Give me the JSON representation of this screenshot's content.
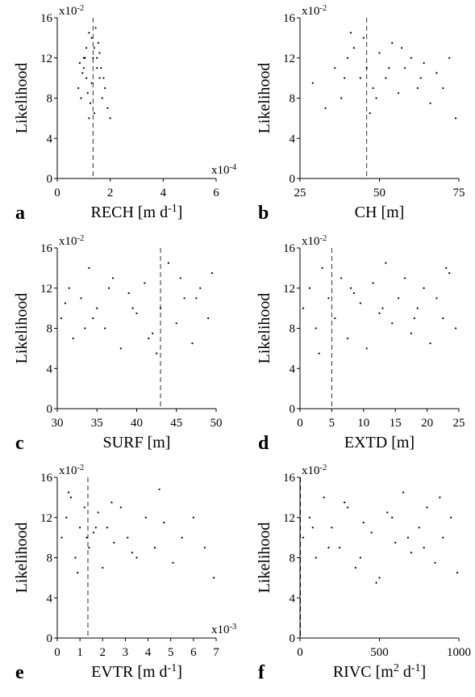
{
  "chart_data": [
    {
      "type": "scatter",
      "panel": "a",
      "ylabel": "Likelihood",
      "xlabel": [
        "RECH [m d",
        "-1",
        "]"
      ],
      "ymultiplier": [
        "x10",
        "-2"
      ],
      "xmultiplier": [
        "x10",
        "-4"
      ],
      "xlim": [
        0,
        6
      ],
      "xticks": [
        0,
        2,
        4,
        6
      ],
      "ylim": [
        0,
        16
      ],
      "yticks": [
        0,
        4,
        8,
        12,
        16
      ],
      "vline": 1.35,
      "color": "#000000",
      "x": [
        0.8,
        1.0,
        1.1,
        1.2,
        1.3,
        1.4,
        1.5,
        1.6,
        1.7,
        1.9,
        0.9,
        1.2,
        1.35,
        1.5,
        1.8,
        1.1,
        1.3,
        1.6,
        2.0,
        0.95,
        1.25,
        1.45,
        1.65,
        1.05,
        1.75,
        0.85,
        1.15,
        1.55,
        1.4,
        1.0
      ],
      "y": [
        9,
        11,
        13,
        14.5,
        14,
        13,
        12,
        10,
        8,
        7,
        8,
        6,
        12,
        11,
        9,
        10,
        9.5,
        12.5,
        6,
        10.5,
        7.5,
        15,
        11,
        12,
        10,
        11.5,
        8.5,
        13.5,
        6.5,
        12
      ]
    },
    {
      "type": "scatter",
      "panel": "b",
      "ylabel": "Likelihood",
      "xlabel": [
        "CH [m]"
      ],
      "ymultiplier": [
        "x10",
        "-2"
      ],
      "xlim": [
        25,
        75
      ],
      "xticks": [
        25,
        50,
        75
      ],
      "ylim": [
        0,
        16
      ],
      "yticks": [
        0,
        4,
        8,
        12,
        16
      ],
      "vline": 46,
      "color": "#000000",
      "x": [
        29,
        33,
        36,
        38,
        40,
        42,
        44,
        45,
        46,
        48,
        50,
        52,
        54,
        56,
        58,
        60,
        62,
        64,
        66,
        68,
        70,
        72,
        74,
        41,
        47,
        53,
        57,
        63,
        39,
        49
      ],
      "y": [
        9.5,
        7,
        11,
        8,
        12,
        13,
        10,
        14,
        11,
        9,
        12.5,
        10,
        13.5,
        8.5,
        11,
        12,
        9,
        11.5,
        7.5,
        10.5,
        9,
        12,
        6,
        14.5,
        6.5,
        11,
        13,
        10,
        10,
        8
      ]
    },
    {
      "type": "scatter",
      "panel": "c",
      "ylabel": "Likelihood",
      "xlabel": [
        "SURF [m]"
      ],
      "ymultiplier": [
        "x10",
        "-2"
      ],
      "xlim": [
        30,
        50
      ],
      "xticks": [
        30,
        35,
        40,
        45,
        50
      ],
      "ylim": [
        0,
        16
      ],
      "yticks": [
        0,
        4,
        8,
        12,
        16
      ],
      "vline": 43,
      "color": "#000000",
      "x": [
        30.5,
        31.5,
        32,
        33,
        34,
        35,
        36,
        37,
        38,
        39,
        40,
        41,
        42,
        43,
        44,
        45,
        46,
        47,
        48,
        49,
        49.5,
        31,
        33.5,
        36.5,
        39.5,
        42.5,
        45.5,
        47.5,
        34.5,
        41.5
      ],
      "y": [
        9,
        12,
        7,
        11,
        14,
        10,
        8,
        13,
        6,
        11.5,
        9.5,
        12.5,
        7.5,
        10,
        14.5,
        8.5,
        11,
        6.5,
        12,
        9,
        13.5,
        10.5,
        8,
        12,
        10,
        5.5,
        13,
        11,
        9,
        7
      ]
    },
    {
      "type": "scatter",
      "panel": "d",
      "ylabel": "Likelihood",
      "xlabel": [
        "EXTD [m]"
      ],
      "ymultiplier": [
        "x10",
        "-2"
      ],
      "xlim": [
        0,
        25
      ],
      "xticks": [
        0,
        5,
        10,
        15,
        20,
        25
      ],
      "ylim": [
        0,
        16
      ],
      "yticks": [
        0,
        4,
        8,
        12,
        16
      ],
      "vline": 5,
      "color": "#000000",
      "x": [
        0.5,
        1.5,
        2.5,
        3.5,
        4.5,
        5.5,
        6.5,
        7.5,
        8.5,
        9.5,
        10.5,
        11.5,
        12.5,
        13.5,
        14.5,
        15.5,
        16.5,
        17.5,
        18.5,
        19.5,
        20.5,
        21.5,
        22.5,
        23.5,
        24.5,
        3,
        8,
        13,
        18,
        23
      ],
      "y": [
        10,
        12,
        8,
        14,
        11,
        9,
        13,
        7,
        11.5,
        10.5,
        6,
        12.5,
        9.5,
        14.5,
        8.5,
        11,
        13,
        7.5,
        10,
        12,
        6.5,
        11,
        9,
        13.5,
        8,
        5.5,
        12,
        10,
        9,
        14
      ]
    },
    {
      "type": "scatter",
      "panel": "e",
      "ylabel": "Likelihood",
      "xlabel": [
        "EVTR [m d",
        "-1",
        "]"
      ],
      "ymultiplier": [
        "x10",
        "-2"
      ],
      "xmultiplier": [
        "x10",
        "-3"
      ],
      "xlim": [
        0,
        7
      ],
      "xticks": [
        0,
        1,
        2,
        3,
        4,
        5,
        6,
        7
      ],
      "ylim": [
        0,
        16
      ],
      "yticks": [
        0,
        4,
        8,
        12,
        16
      ],
      "vline": 1.35,
      "color": "#000000",
      "x": [
        0.2,
        0.4,
        0.6,
        0.8,
        1.0,
        1.2,
        1.4,
        1.6,
        1.8,
        2.0,
        2.2,
        2.5,
        2.8,
        3.1,
        3.5,
        3.9,
        4.3,
        4.7,
        5.1,
        5.5,
        6.0,
        6.5,
        6.9,
        0.5,
        0.9,
        1.3,
        1.7,
        2.4,
        3.3,
        4.5
      ],
      "y": [
        10,
        12,
        14,
        8,
        11,
        13,
        9,
        10.5,
        12.5,
        7,
        11,
        9.5,
        13,
        10,
        8,
        12,
        9,
        11.5,
        7.5,
        10,
        12,
        9,
        6,
        14.5,
        6.5,
        10,
        11,
        13.5,
        8.5,
        14.8
      ]
    },
    {
      "type": "scatter",
      "panel": "f",
      "ylabel": "Likelihood",
      "xlabel": [
        "RIVC [m",
        "2",
        " d",
        "-1",
        "]"
      ],
      "ymultiplier": [
        "x10",
        "-2"
      ],
      "xlim": [
        0,
        1000
      ],
      "xticks": [
        0,
        500,
        1000
      ],
      "ylim": [
        0,
        16
      ],
      "yticks": [
        0,
        4,
        8,
        12,
        16
      ],
      "vline": 3,
      "color": "#000000",
      "x": [
        20,
        60,
        100,
        150,
        200,
        250,
        300,
        350,
        400,
        450,
        500,
        550,
        600,
        650,
        700,
        750,
        800,
        850,
        900,
        950,
        990,
        80,
        180,
        280,
        380,
        480,
        580,
        680,
        780,
        880
      ],
      "y": [
        10,
        12,
        8,
        14,
        11,
        9,
        13,
        7,
        11.5,
        10.5,
        6,
        12.5,
        9.5,
        14.5,
        8.5,
        11,
        13,
        7.5,
        10,
        12,
        6.5,
        11,
        9,
        13.5,
        8,
        5.5,
        12,
        10,
        9,
        14
      ]
    }
  ]
}
